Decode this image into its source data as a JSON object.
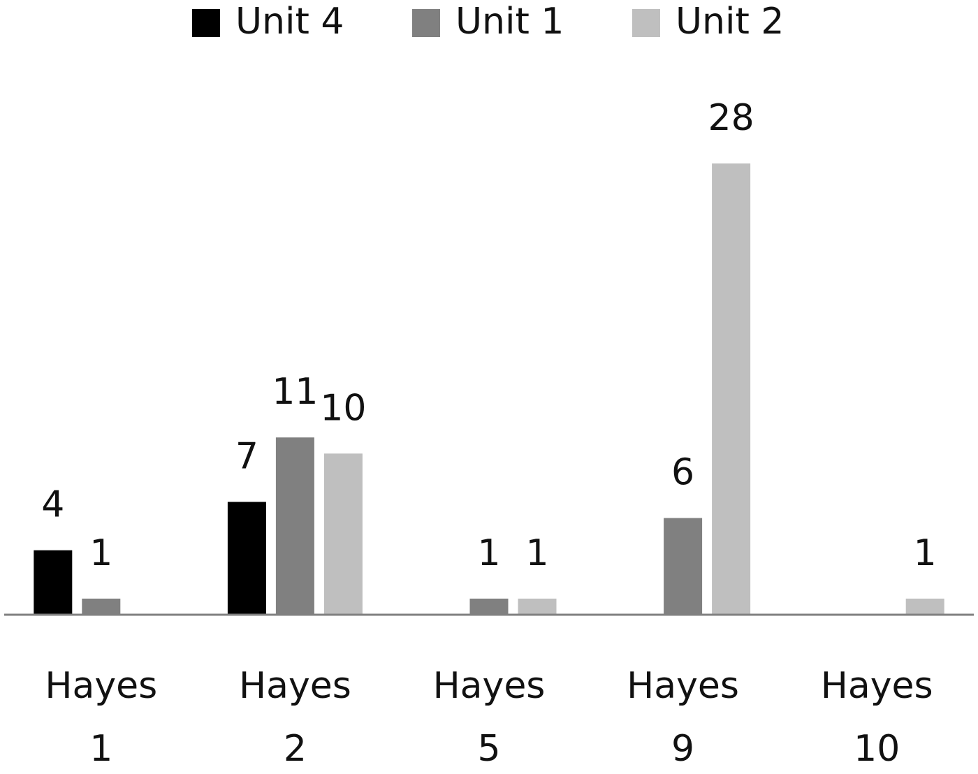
{
  "chart_data": {
    "type": "bar",
    "categories": [
      "Hayes 1",
      "Hayes 2",
      "Hayes 5",
      "Hayes 9",
      "Hayes 10"
    ],
    "series": [
      {
        "name": "Unit 4",
        "color": "#000000",
        "values": [
          4,
          7,
          null,
          null,
          null
        ]
      },
      {
        "name": "Unit 1",
        "color": "#808080",
        "values": [
          1,
          11,
          1,
          6,
          null
        ]
      },
      {
        "name": "Unit 2",
        "color": "#bfbfbf",
        "values": [
          null,
          10,
          1,
          28,
          1
        ]
      }
    ],
    "legend": "top"
  }
}
